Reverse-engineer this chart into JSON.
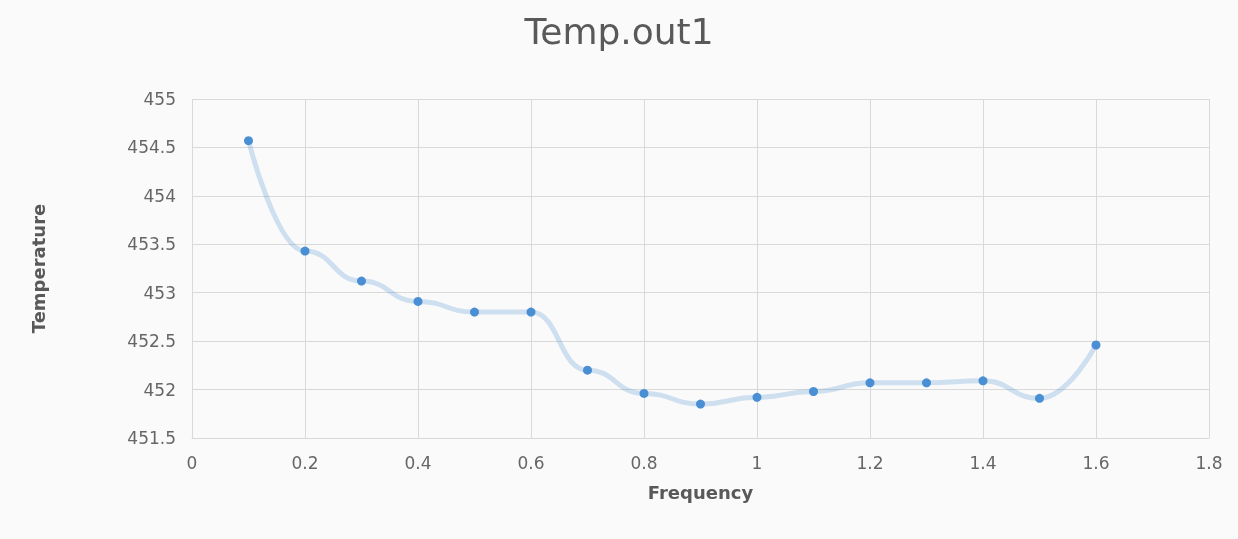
{
  "chart_data": {
    "type": "line",
    "title": "Temp.out1",
    "xlabel": "Frequency",
    "ylabel": "Temperature",
    "x": [
      0.1,
      0.2,
      0.3,
      0.4,
      0.5,
      0.6,
      0.7,
      0.8,
      0.9,
      1.0,
      1.1,
      1.2,
      1.3,
      1.4,
      1.5,
      1.6
    ],
    "series": [
      {
        "color": "#4a8fd4",
        "values": [
          454.57,
          453.43,
          453.12,
          452.91,
          452.8,
          452.8,
          452.2,
          451.96,
          451.85,
          451.92,
          451.98,
          452.07,
          452.07,
          452.09,
          451.91,
          452.46
        ]
      }
    ],
    "xlim": [
      0,
      1.8
    ],
    "xticks": [
      0,
      0.2,
      0.4,
      0.6,
      0.8,
      1,
      1.2,
      1.4,
      1.6,
      1.8
    ],
    "ylim": [
      451.5,
      455
    ],
    "yticks": [
      451.5,
      452,
      452.5,
      453,
      453.5,
      454,
      454.5,
      455
    ],
    "grid": true,
    "marker": "circle",
    "line_style": "solid"
  }
}
